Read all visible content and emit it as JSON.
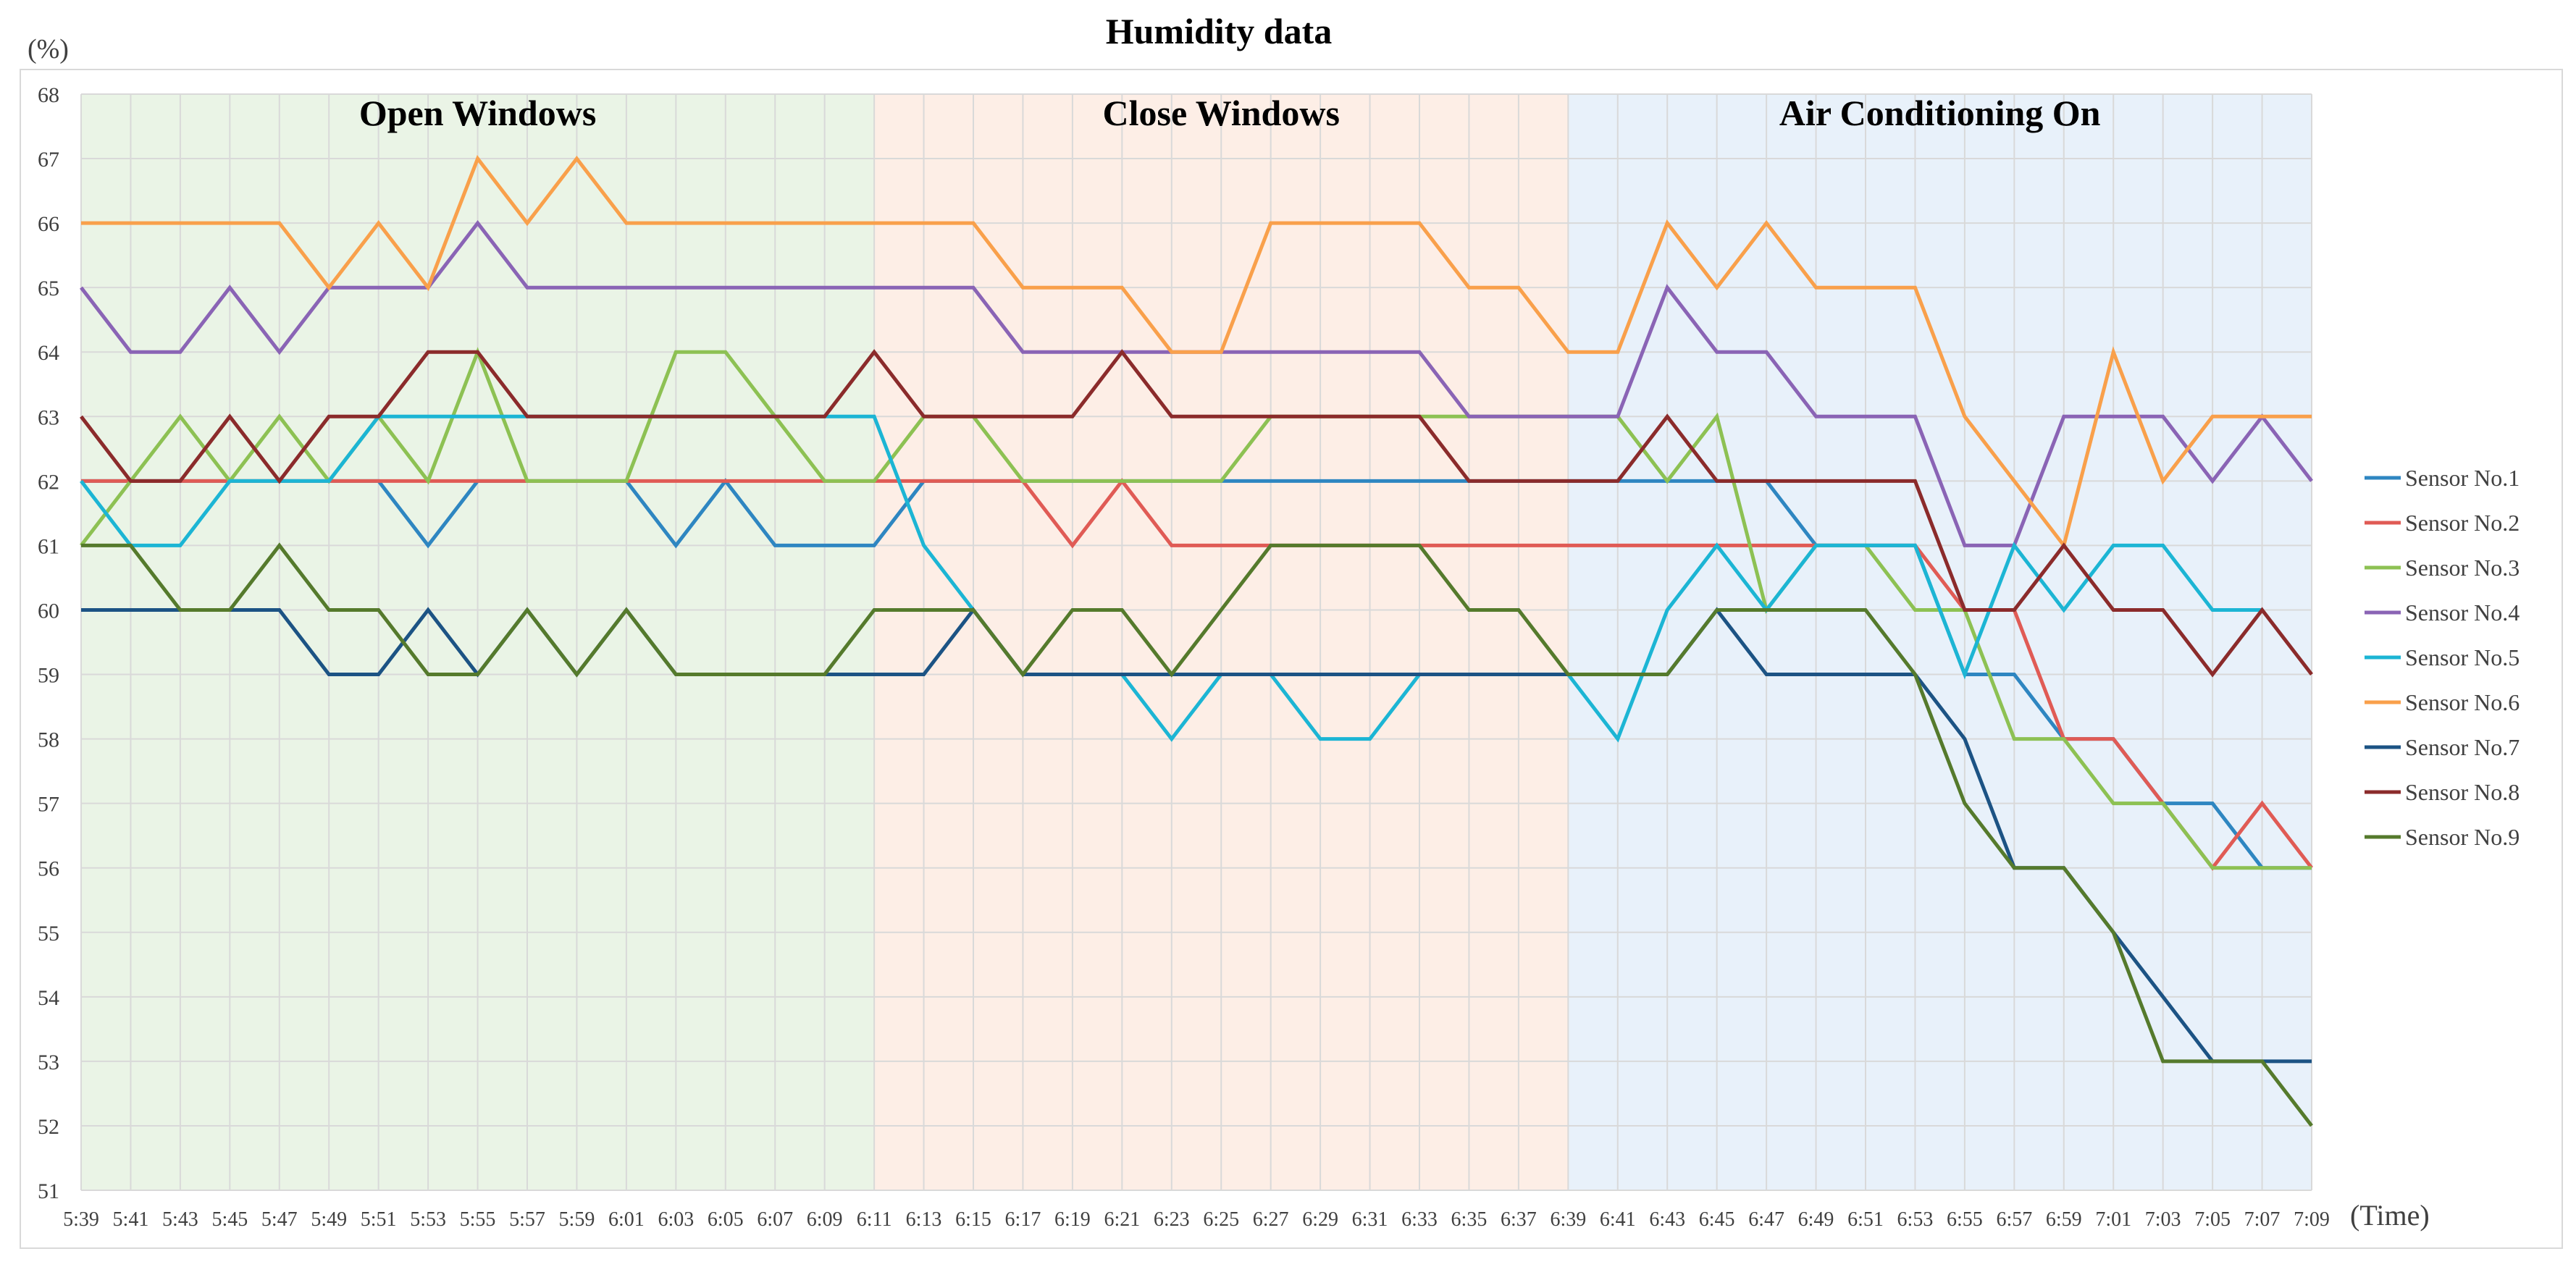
{
  "chart_data": {
    "type": "line",
    "title": "Humidity data",
    "ylabel": "(%)",
    "xlabel": "(Time)",
    "ylim": [
      51,
      68
    ],
    "yticks": [
      "51",
      "52",
      "53",
      "54",
      "55",
      "56",
      "57",
      "58",
      "59",
      "60",
      "61",
      "62",
      "63",
      "64",
      "65",
      "66",
      "67",
      "68"
    ],
    "grid": true,
    "legend_position": "right",
    "categories": [
      "5:39",
      "5:41",
      "5:43",
      "5:45",
      "5:47",
      "5:49",
      "5:51",
      "5:53",
      "5:55",
      "5:57",
      "5:59",
      "6:01",
      "6:03",
      "6:05",
      "6:07",
      "6:09",
      "6:11",
      "6:13",
      "6:15",
      "6:17",
      "6:19",
      "6:21",
      "6:23",
      "6:25",
      "6:27",
      "6:29",
      "6:31",
      "6:33",
      "6:35",
      "6:37",
      "6:39",
      "6:41",
      "6:43",
      "6:45",
      "6:47",
      "6:49",
      "6:51",
      "6:53",
      "6:55",
      "6:57",
      "6:59",
      "7:01",
      "7:03",
      "7:05",
      "7:07",
      "7:09"
    ],
    "regions": [
      {
        "label": "Open Windows",
        "start": 0,
        "end": 16,
        "color": "#eaf4e6"
      },
      {
        "label": "Close Windows",
        "start": 16,
        "end": 30,
        "color": "#fdeee6"
      },
      {
        "label": "Air Conditioning On",
        "start": 30,
        "end": 45,
        "color": "#e8f1fa"
      }
    ],
    "series": [
      {
        "name": "Sensor No.1",
        "color": "#2e86c1",
        "values": [
          62,
          62,
          62,
          62,
          62,
          62,
          62,
          61,
          62,
          62,
          62,
          62,
          61,
          62,
          61,
          61,
          61,
          62,
          62,
          62,
          62,
          62,
          62,
          62,
          62,
          62,
          62,
          62,
          62,
          62,
          62,
          62,
          62,
          62,
          62,
          61,
          61,
          61,
          59,
          59,
          58,
          58,
          57,
          57,
          56,
          56
        ]
      },
      {
        "name": "Sensor No.2",
        "color": "#e05b55",
        "values": [
          62,
          62,
          62,
          62,
          62,
          62,
          62,
          62,
          62,
          62,
          62,
          62,
          62,
          62,
          62,
          62,
          62,
          62,
          62,
          62,
          61,
          62,
          61,
          61,
          61,
          61,
          61,
          61,
          61,
          61,
          61,
          61,
          61,
          61,
          61,
          61,
          61,
          61,
          60,
          60,
          58,
          58,
          57,
          56,
          57,
          56
        ]
      },
      {
        "name": "Sensor No.3",
        "color": "#8dc153",
        "values": [
          61,
          62,
          63,
          62,
          63,
          62,
          63,
          62,
          64,
          62,
          62,
          62,
          64,
          64,
          63,
          62,
          62,
          63,
          63,
          62,
          62,
          62,
          62,
          62,
          63,
          63,
          63,
          63,
          63,
          63,
          63,
          63,
          62,
          63,
          60,
          61,
          61,
          60,
          60,
          58,
          58,
          57,
          57,
          56,
          56,
          56
        ]
      },
      {
        "name": "Sensor No.4",
        "color": "#8a64b5",
        "values": [
          65,
          64,
          64,
          65,
          64,
          65,
          65,
          65,
          66,
          65,
          65,
          65,
          65,
          65,
          65,
          65,
          65,
          65,
          65,
          64,
          64,
          64,
          64,
          64,
          64,
          64,
          64,
          64,
          63,
          63,
          63,
          63,
          65,
          64,
          64,
          63,
          63,
          63,
          61,
          61,
          63,
          63,
          63,
          62,
          63,
          62
        ]
      },
      {
        "name": "Sensor No.5",
        "color": "#1cb5d4",
        "values": [
          62,
          61,
          61,
          62,
          62,
          62,
          63,
          63,
          63,
          63,
          63,
          63,
          63,
          63,
          63,
          63,
          63,
          61,
          60,
          59,
          59,
          59,
          58,
          59,
          59,
          58,
          58,
          59,
          59,
          59,
          59,
          58,
          60,
          61,
          60,
          61,
          61,
          61,
          59,
          61,
          60,
          61,
          61,
          60,
          60,
          null
        ]
      },
      {
        "name": "Sensor No.6",
        "color": "#f9a04b",
        "values": [
          66,
          66,
          66,
          66,
          66,
          65,
          66,
          65,
          67,
          66,
          67,
          66,
          66,
          66,
          66,
          66,
          66,
          66,
          66,
          65,
          65,
          65,
          64,
          64,
          66,
          66,
          66,
          66,
          65,
          65,
          64,
          64,
          66,
          65,
          66,
          65,
          65,
          65,
          63,
          62,
          61,
          64,
          62,
          63,
          63,
          63
        ]
      },
      {
        "name": "Sensor No.7",
        "color": "#1c5384",
        "values": [
          60,
          60,
          60,
          60,
          60,
          59,
          59,
          60,
          59,
          60,
          59,
          60,
          59,
          59,
          59,
          59,
          59,
          59,
          60,
          59,
          59,
          59,
          59,
          59,
          59,
          59,
          59,
          59,
          59,
          59,
          59,
          59,
          59,
          60,
          59,
          59,
          59,
          59,
          58,
          56,
          56,
          55,
          54,
          53,
          53,
          53
        ]
      },
      {
        "name": "Sensor No.8",
        "color": "#8b2b2b",
        "values": [
          63,
          62,
          62,
          63,
          62,
          63,
          63,
          64,
          64,
          63,
          63,
          63,
          63,
          63,
          63,
          63,
          64,
          63,
          63,
          63,
          63,
          64,
          63,
          63,
          63,
          63,
          63,
          63,
          62,
          62,
          62,
          62,
          63,
          62,
          62,
          62,
          62,
          62,
          60,
          60,
          61,
          60,
          60,
          59,
          60,
          59
        ]
      },
      {
        "name": "Sensor No.9",
        "color": "#557a2c",
        "values": [
          61,
          61,
          60,
          60,
          61,
          60,
          60,
          59,
          59,
          60,
          59,
          60,
          59,
          59,
          59,
          59,
          60,
          60,
          60,
          59,
          60,
          60,
          59,
          60,
          61,
          61,
          61,
          61,
          60,
          60,
          59,
          59,
          59,
          60,
          60,
          60,
          60,
          59,
          57,
          56,
          56,
          55,
          53,
          53,
          53,
          52
        ]
      }
    ]
  }
}
